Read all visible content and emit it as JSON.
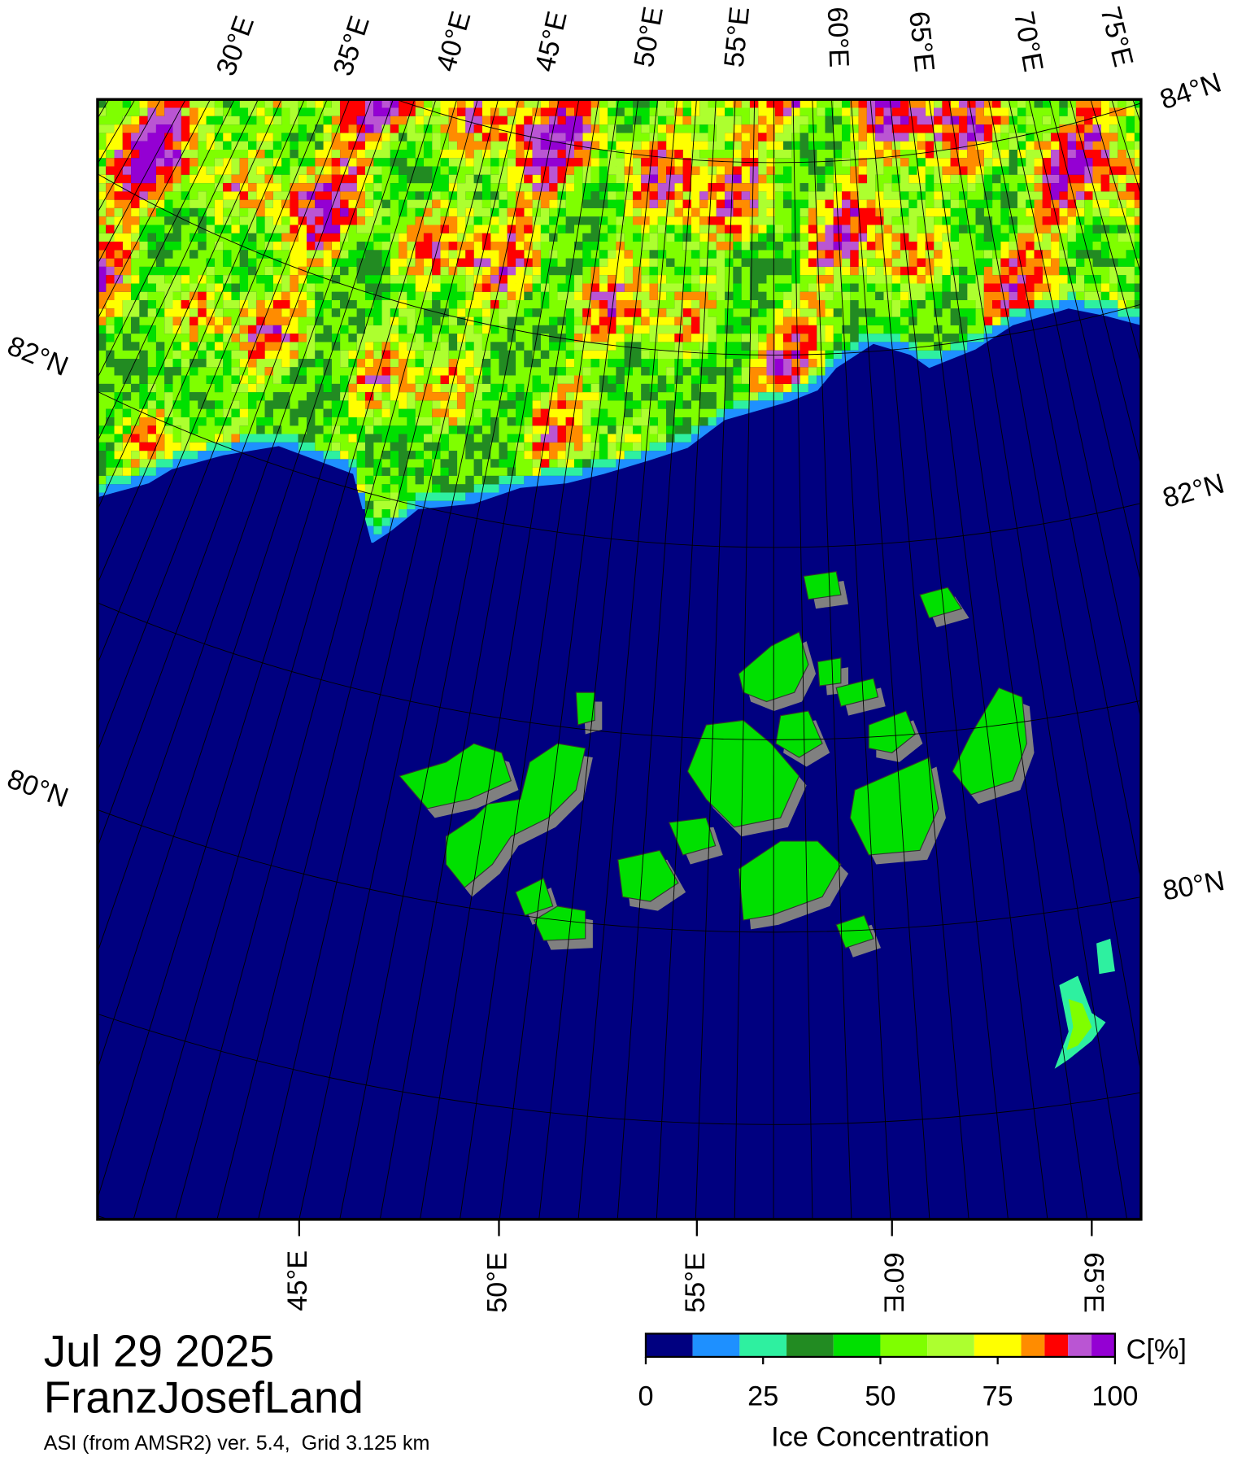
{
  "title": "Jul 29 2025",
  "region": "FranzJosefLand",
  "subtitle": "ASI (from AMSR2) ver. 5.4,  Grid 3.125 km",
  "top_lon_labels": [
    "30°E",
    "35°E",
    "40°E",
    "45°E",
    "50°E",
    "55°E",
    "60°E",
    "65°E",
    "70°E",
    "75°E"
  ],
  "bottom_lon_labels": [
    "45°E",
    "50°E",
    "55°E",
    "60°E",
    "65°E"
  ],
  "lat_labels_left": [
    "82°N",
    "80°N"
  ],
  "lat_labels_right": [
    "84°N",
    "82°N",
    "80°N"
  ],
  "colorbar": {
    "label": "Ice Concentration",
    "unit": "C[%]",
    "lim": [
      0,
      100
    ],
    "ticks": [
      0,
      25,
      50,
      75,
      100
    ],
    "bounds": [
      0,
      10,
      20,
      30,
      40,
      50,
      60,
      70,
      80,
      85,
      90,
      95,
      100
    ],
    "colors": [
      "#000080",
      "#1e90ff",
      "#2ef0a0",
      "#228b22",
      "#00e000",
      "#7fff00",
      "#adff2f",
      "#ffff00",
      "#ff8c00",
      "#ff0000",
      "#ba55d3",
      "#9400d3"
    ]
  }
}
